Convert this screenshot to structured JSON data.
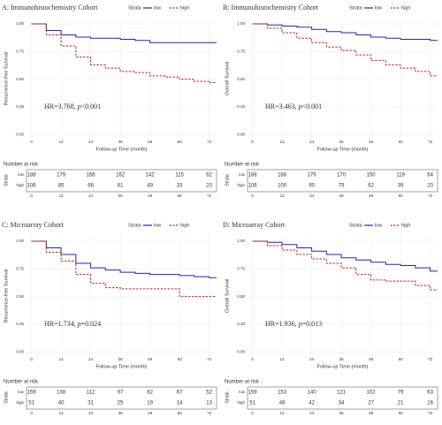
{
  "chart_data": [
    {
      "type": "line",
      "title": "A: Immunohistochemistry Cohort",
      "ylabel": "Recurrence-free Survival",
      "xlabel": "Follow-up Time (month)",
      "legend_title": "Strata",
      "annotation": {
        "hr": "HR=3.768,",
        "p": "p",
        "p_value": "<0.001"
      },
      "x": [
        0,
        6,
        12,
        18,
        24,
        30,
        36,
        42,
        48,
        54,
        60,
        66,
        72,
        75
      ],
      "series": [
        {
          "name": "low",
          "color": "#2323c4",
          "values": [
            1.0,
            0.94,
            0.9,
            0.88,
            0.87,
            0.87,
            0.86,
            0.85,
            0.83,
            0.83,
            0.83,
            0.83,
            0.83,
            0.83
          ],
          "at_risk": [
            188,
            179,
            166,
            162,
            142,
            115,
            62
          ]
        },
        {
          "name": "high",
          "color": "#cc2020",
          "values": [
            1.0,
            0.9,
            0.8,
            0.7,
            0.63,
            0.6,
            0.57,
            0.56,
            0.53,
            0.52,
            0.5,
            0.48,
            0.47,
            0.47
          ],
          "at_risk": [
            106,
            85,
            66,
            61,
            49,
            33,
            20
          ]
        }
      ],
      "xlim": [
        -2,
        75
      ],
      "xticks": [
        0,
        12,
        24,
        36,
        48,
        60,
        72
      ],
      "ylim": [
        -0.03,
        1.04
      ],
      "yticks": [
        {
          "value": 0,
          "label": "0.00"
        },
        {
          "value": 0.25,
          "label": "0.25"
        },
        {
          "value": 0.5,
          "label": "0.50"
        },
        {
          "value": 0.75,
          "label": "0.75"
        },
        {
          "value": 1,
          "label": "1.00"
        }
      ],
      "risk_title": "Number at risk",
      "risk_ylabel": "Strata"
    },
    {
      "type": "line",
      "title": "B: Immunohistochemistry Cohort",
      "ylabel": "Overall Survival",
      "xlabel": "Follow-up Time (month)",
      "legend_title": "Strata",
      "annotation": {
        "hr": "HR=3.463,",
        "p": "p",
        "p_value": "<0.001"
      },
      "x": [
        0,
        6,
        12,
        18,
        24,
        30,
        36,
        42,
        48,
        54,
        60,
        66,
        72,
        75
      ],
      "series": [
        {
          "name": "low",
          "color": "#2323c4",
          "values": [
            1.0,
            0.99,
            0.98,
            0.97,
            0.95,
            0.93,
            0.92,
            0.9,
            0.88,
            0.87,
            0.86,
            0.86,
            0.85,
            0.85
          ],
          "at_risk": [
            188,
            188,
            179,
            170,
            150,
            119,
            64
          ]
        },
        {
          "name": "high",
          "color": "#cc2020",
          "values": [
            1.0,
            0.96,
            0.92,
            0.87,
            0.83,
            0.79,
            0.76,
            0.72,
            0.67,
            0.63,
            0.6,
            0.57,
            0.53,
            0.53
          ],
          "at_risk": [
            106,
            100,
            90,
            79,
            62,
            39,
            20
          ]
        }
      ],
      "xlim": [
        -2,
        75
      ],
      "xticks": [
        0,
        12,
        24,
        36,
        48,
        60,
        72
      ],
      "ylim": [
        -0.03,
        1.04
      ],
      "yticks": [
        {
          "value": 0,
          "label": "0.00"
        },
        {
          "value": 0.25,
          "label": "0.25"
        },
        {
          "value": 0.5,
          "label": "0.50"
        },
        {
          "value": 0.75,
          "label": "0.75"
        },
        {
          "value": 1,
          "label": "1.00"
        }
      ],
      "risk_title": "Number at risk",
      "risk_ylabel": "Strata"
    },
    {
      "type": "line",
      "title": "C: Microarray Cohort",
      "ylabel": "Recurrence-free Survival",
      "xlabel": "Follow-up Time (month)",
      "legend_title": "Strata",
      "annotation": {
        "hr": "HR=1.734,",
        "p": "p",
        "p_value": "=0.024"
      },
      "x": [
        0,
        6,
        12,
        18,
        24,
        30,
        36,
        42,
        48,
        54,
        60,
        66,
        72,
        75
      ],
      "series": [
        {
          "name": "low",
          "color": "#2323c4",
          "values": [
            1.0,
            0.94,
            0.88,
            0.8,
            0.76,
            0.74,
            0.72,
            0.71,
            0.7,
            0.7,
            0.69,
            0.68,
            0.67,
            0.67
          ],
          "at_risk": [
            159,
            138,
            112,
            97,
            82,
            67,
            52
          ]
        },
        {
          "name": "high",
          "color": "#cc2020",
          "values": [
            1.0,
            0.9,
            0.82,
            0.7,
            0.62,
            0.58,
            0.57,
            0.57,
            0.57,
            0.57,
            0.5,
            0.5,
            0.5,
            0.5
          ],
          "at_risk": [
            51,
            40,
            31,
            25,
            19,
            14,
            13
          ]
        }
      ],
      "xlim": [
        -2,
        75
      ],
      "xticks": [
        0,
        12,
        24,
        36,
        48,
        60,
        72
      ],
      "ylim": [
        -0.03,
        1.04
      ],
      "yticks": [
        {
          "value": 0,
          "label": "0.00"
        },
        {
          "value": 0.25,
          "label": "0.25"
        },
        {
          "value": 0.5,
          "label": "0.50"
        },
        {
          "value": 0.75,
          "label": "0.75"
        },
        {
          "value": 1,
          "label": "1.00"
        }
      ],
      "risk_title": "Number at risk",
      "risk_ylabel": "Strata"
    },
    {
      "type": "line",
      "title": "D: Microarray Cohort",
      "ylabel": "Overall Survival",
      "xlabel": "Follow-up Time (month)",
      "legend_title": "Strata",
      "annotation": {
        "hr": "HR=1.936,",
        "p": "p",
        "p_value": "=0.013"
      },
      "x": [
        0,
        6,
        12,
        18,
        24,
        30,
        36,
        42,
        48,
        54,
        60,
        66,
        72,
        75
      ],
      "series": [
        {
          "name": "low",
          "color": "#2323c4",
          "values": [
            1.0,
            0.99,
            0.97,
            0.94,
            0.91,
            0.88,
            0.85,
            0.83,
            0.81,
            0.79,
            0.78,
            0.76,
            0.73,
            0.73
          ],
          "at_risk": [
            159,
            153,
            140,
            121,
            102,
            79,
            63
          ]
        },
        {
          "name": "high",
          "color": "#cc2020",
          "values": [
            1.0,
            0.96,
            0.92,
            0.88,
            0.84,
            0.8,
            0.76,
            0.7,
            0.65,
            0.64,
            0.64,
            0.6,
            0.56,
            0.56
          ],
          "at_risk": [
            51,
            48,
            42,
            34,
            27,
            21,
            16
          ]
        }
      ],
      "xlim": [
        -2,
        75
      ],
      "xticks": [
        0,
        12,
        24,
        36,
        48,
        60,
        72
      ],
      "ylim": [
        -0.03,
        1.04
      ],
      "yticks": [
        {
          "value": 0,
          "label": "0.00"
        },
        {
          "value": 0.25,
          "label": "0.25"
        },
        {
          "value": 0.5,
          "label": "0.50"
        },
        {
          "value": 0.75,
          "label": "0.75"
        },
        {
          "value": 1,
          "label": "1.00"
        }
      ],
      "risk_title": "Number at risk",
      "risk_ylabel": "Strata"
    }
  ]
}
